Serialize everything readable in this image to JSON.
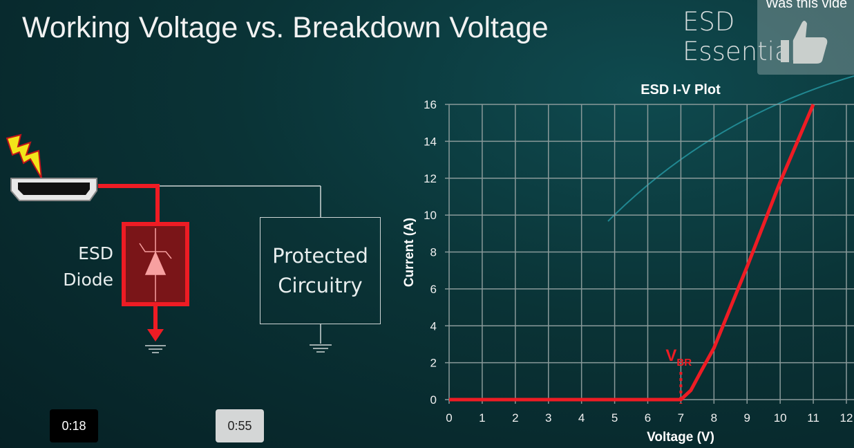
{
  "slide": {
    "title": "Working Voltage vs. Breakdown Voltage",
    "brand": "ESD Essentials",
    "diagram": {
      "diode_label_line1": "ESD",
      "diode_label_line2": "Diode",
      "protected_line1": "Protected",
      "protected_line2": "Circuitry"
    }
  },
  "player": {
    "feedback_prompt": "Was this vide",
    "feedback_icon": "thumbs-up-icon",
    "current_time": "0:18",
    "hover_time": "0:55"
  },
  "colors": {
    "accent": "#ee1c24",
    "grid": "#8a9a9a",
    "background": "#0a3336"
  },
  "chart_data": {
    "type": "line",
    "title": "ESD I-V Plot",
    "xlabel": "Voltage (V)",
    "ylabel": "Current (A)",
    "xlim": [
      0,
      12
    ],
    "ylim": [
      0,
      16
    ],
    "xticks": [
      "0",
      "1",
      "2",
      "3",
      "4",
      "5",
      "6",
      "7",
      "8",
      "9",
      "10",
      "11",
      "12"
    ],
    "yticks": [
      "0",
      "2",
      "4",
      "6",
      "8",
      "10",
      "12",
      "14",
      "16"
    ],
    "grid": true,
    "series": [
      {
        "x": [
          0,
          7,
          7.3,
          7.6,
          8,
          8.5,
          9,
          10,
          11
        ],
        "y": [
          0,
          0,
          0.5,
          1.5,
          2.8,
          5,
          7.2,
          11.8,
          16
        ]
      }
    ],
    "annotation": {
      "label": "V",
      "subscript": "BR",
      "x": 7
    }
  }
}
